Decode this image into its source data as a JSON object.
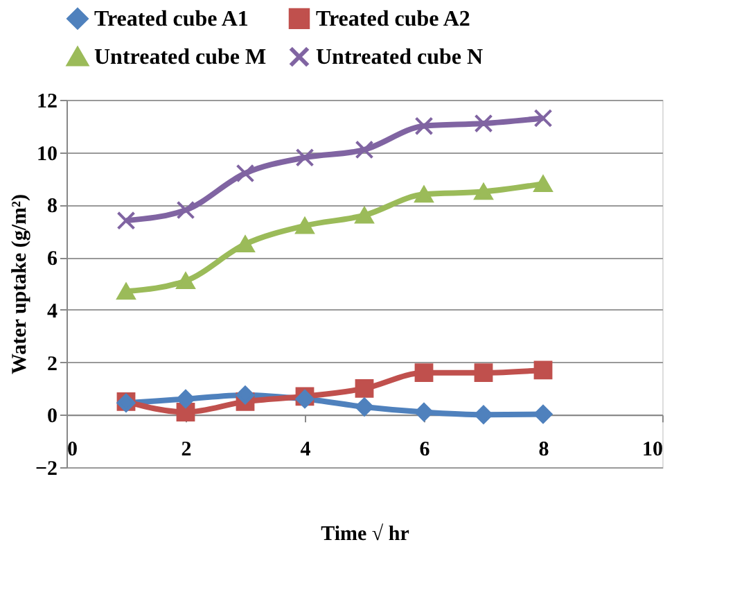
{
  "chart_data": {
    "type": "line",
    "xlabel": "Time √ hr",
    "ylabel": "Water uptake (g/m²)",
    "x": [
      1,
      2,
      3,
      4,
      5,
      6,
      7,
      8
    ],
    "series": [
      {
        "name": "Treated cube A1",
        "color": "#4f81bd",
        "marker": "diamond",
        "values": [
          0.45,
          0.6,
          0.75,
          0.6,
          0.3,
          0.1,
          0.0,
          0.02
        ]
      },
      {
        "name": "Treated cube A2",
        "color": "#c0504d",
        "marker": "square",
        "values": [
          0.5,
          0.1,
          0.5,
          0.7,
          1.0,
          1.6,
          1.6,
          1.7
        ]
      },
      {
        "name": "Untreated cube M",
        "color": "#9bbb59",
        "marker": "triangle",
        "values": [
          4.7,
          5.1,
          6.5,
          7.2,
          7.6,
          8.4,
          8.5,
          8.8
        ]
      },
      {
        "name": "Untreated cube N",
        "color": "#8064a2",
        "marker": "cross",
        "values": [
          7.4,
          7.8,
          9.2,
          9.8,
          10.1,
          11.0,
          11.1,
          11.3
        ]
      }
    ],
    "xlim": [
      0,
      10
    ],
    "xticks": [
      0,
      2,
      4,
      6,
      8,
      10
    ],
    "ylim": [
      -2,
      12
    ],
    "yticks": [
      -2,
      0,
      2,
      4,
      6,
      8,
      10,
      12
    ],
    "grid": "y",
    "legend": "top",
    "line_style": "solid"
  }
}
